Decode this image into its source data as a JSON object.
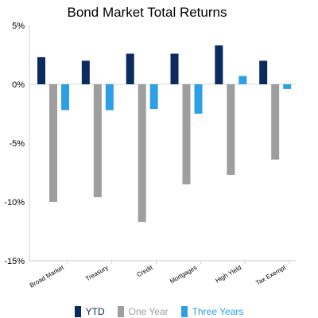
{
  "chart_data": {
    "type": "bar",
    "title": "Bond Market Total Returns",
    "categories": [
      "Broad Market",
      "Treasury",
      "Credit",
      "Mortgages",
      "High Yield",
      "Tax Exempt"
    ],
    "series": [
      {
        "name": "YTD",
        "values": [
          2.3,
          2.0,
          2.6,
          2.6,
          3.3,
          2.0
        ],
        "color": "#0b2a5e"
      },
      {
        "name": "One Year",
        "values": [
          -10.0,
          -9.6,
          -11.7,
          -8.5,
          -7.7,
          -6.4
        ],
        "color": "#9e9e9e"
      },
      {
        "name": "Three Years",
        "values": [
          -2.2,
          -2.2,
          -2.1,
          -2.5,
          0.7,
          -0.4
        ],
        "color": "#2d9fe6"
      }
    ],
    "y_ticks": [
      "5%",
      "0%",
      "-5%",
      "-10%",
      "-15%"
    ],
    "ylim": [
      -15,
      5
    ],
    "grid": false,
    "legend_position": "bottom"
  }
}
